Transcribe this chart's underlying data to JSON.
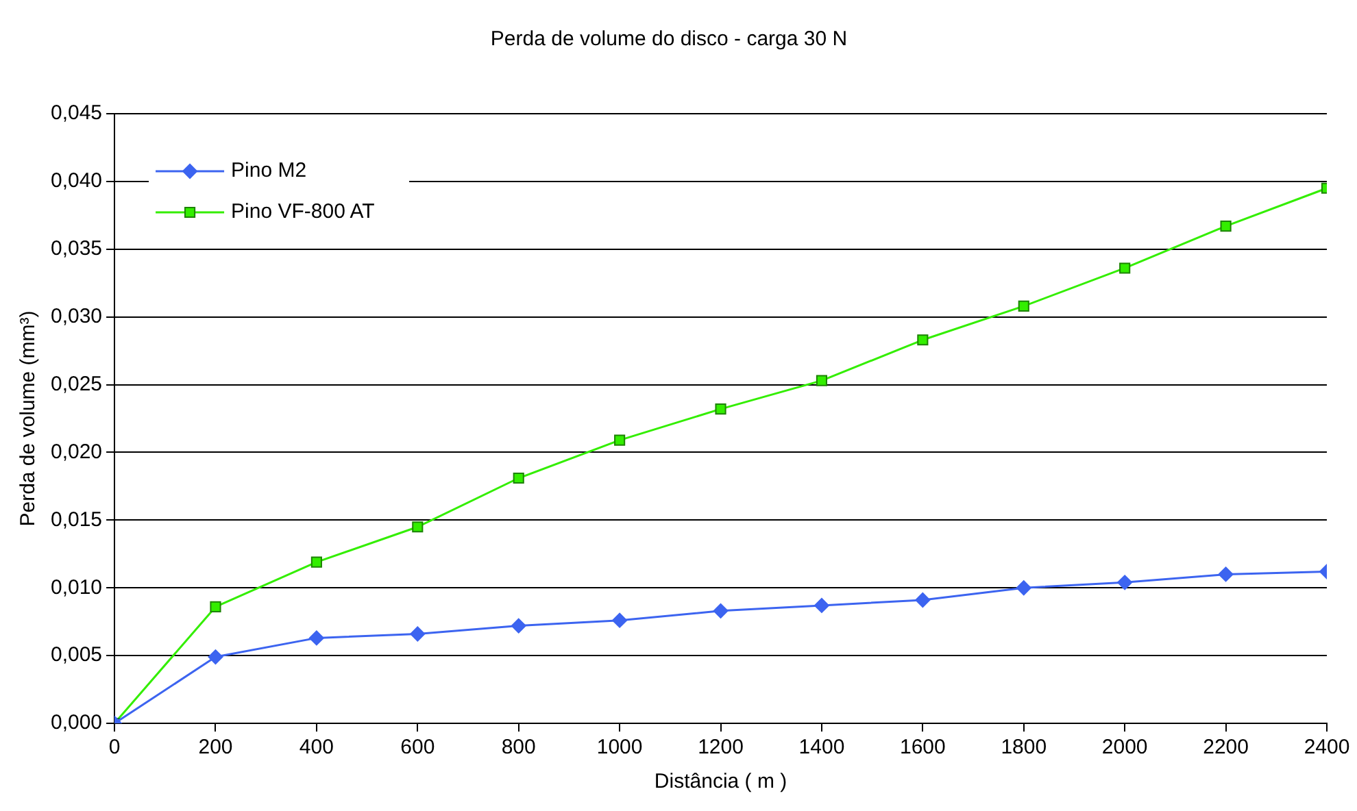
{
  "chart_data": {
    "type": "line",
    "title": "Perda de volume do disco - carga 30 N",
    "xlabel": "Distância ( m )",
    "ylabel": "Perda de volume (mm³)",
    "x": [
      0,
      200,
      400,
      600,
      800,
      1000,
      1200,
      1400,
      1600,
      1800,
      2000,
      2200,
      2400
    ],
    "series": [
      {
        "name": "Pino M2",
        "color": "#3c64f0",
        "marker": "diamond",
        "values": [
          0,
          0.0049,
          0.0063,
          0.0066,
          0.0072,
          0.0076,
          0.0083,
          0.0087,
          0.0091,
          0.01,
          0.0104,
          0.011,
          0.0112
        ]
      },
      {
        "name": "Pino VF-800 AT",
        "color": "#33ee00",
        "marker": "square",
        "values": [
          0,
          0.0086,
          0.0119,
          0.0145,
          0.0181,
          0.0209,
          0.0232,
          0.0253,
          0.0283,
          0.0308,
          0.0336,
          0.0367,
          0.0395
        ]
      }
    ],
    "xlim": [
      0,
      2400
    ],
    "xticks": [
      0,
      200,
      400,
      600,
      800,
      1000,
      1200,
      1400,
      1600,
      1800,
      2000,
      2200,
      2400
    ],
    "ylim": [
      0,
      0.045
    ],
    "yticks": [
      {
        "value": 0,
        "label": "0,000"
      },
      {
        "value": 0.005,
        "label": "0,005"
      },
      {
        "value": 0.01,
        "label": "0,010"
      },
      {
        "value": 0.015,
        "label": "0,015"
      },
      {
        "value": 0.02,
        "label": "0,020"
      },
      {
        "value": 0.025,
        "label": "0,025"
      },
      {
        "value": 0.03,
        "label": "0,030"
      },
      {
        "value": 0.035,
        "label": "0,035"
      },
      {
        "value": 0.04,
        "label": "0,040"
      },
      {
        "value": 0.045,
        "label": "0,045"
      }
    ],
    "grid": "y",
    "legend": "top left",
    "line_style": "solid"
  }
}
